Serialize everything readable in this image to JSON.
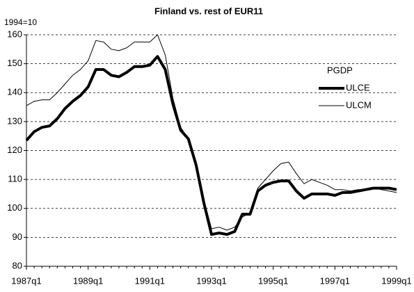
{
  "chart_data": {
    "type": "line",
    "title": "Finland vs. rest of EUR11",
    "ylabel": "1994=10",
    "legend_title": "PGDP",
    "categories": [
      "1987q1",
      null,
      null,
      null,
      null,
      null,
      null,
      null,
      "1989q1",
      null,
      null,
      null,
      null,
      null,
      null,
      null,
      "1991q1",
      null,
      null,
      null,
      null,
      null,
      null,
      null,
      "1993q1",
      null,
      null,
      null,
      null,
      null,
      null,
      null,
      "1995q1",
      null,
      null,
      null,
      null,
      null,
      null,
      null,
      "1997q1",
      null,
      null,
      null,
      null,
      null,
      null,
      null,
      "1999q1"
    ],
    "series": [
      {
        "name": "ULCE",
        "color": "#000000",
        "width": 4,
        "values": [
          123.5,
          126.5,
          128,
          128.5,
          131,
          134.5,
          137,
          139,
          142,
          148,
          148,
          146,
          145.5,
          147,
          149,
          149,
          149.5,
          152.5,
          148,
          136,
          127,
          124,
          115,
          102,
          91,
          91.5,
          91,
          92,
          98,
          98,
          106,
          108,
          109,
          109.5,
          109.5,
          106,
          103.5,
          105,
          105,
          105,
          104.5,
          105.5,
          105.5,
          106,
          106.5,
          107,
          107,
          107,
          106.5
        ]
      },
      {
        "name": "ULCM",
        "color": "#000000",
        "width": 1,
        "values": [
          135.5,
          137,
          137.5,
          137.5,
          140,
          143,
          146,
          148,
          151,
          158,
          157.5,
          155,
          154.5,
          155.5,
          157.5,
          157.5,
          157.5,
          160,
          153,
          138,
          128,
          124,
          116,
          103,
          93,
          93.5,
          92.5,
          93.5,
          97,
          98.5,
          107,
          110,
          113,
          115.5,
          116,
          112,
          108.5,
          110,
          109,
          108,
          106.5,
          106.5,
          106,
          106.5,
          106.5,
          107,
          106.5,
          106,
          105.5
        ]
      }
    ],
    "ylim": [
      80,
      160
    ],
    "yticks": [
      80,
      90,
      100,
      110,
      120,
      130,
      140,
      150,
      160
    ],
    "grid": true
  }
}
